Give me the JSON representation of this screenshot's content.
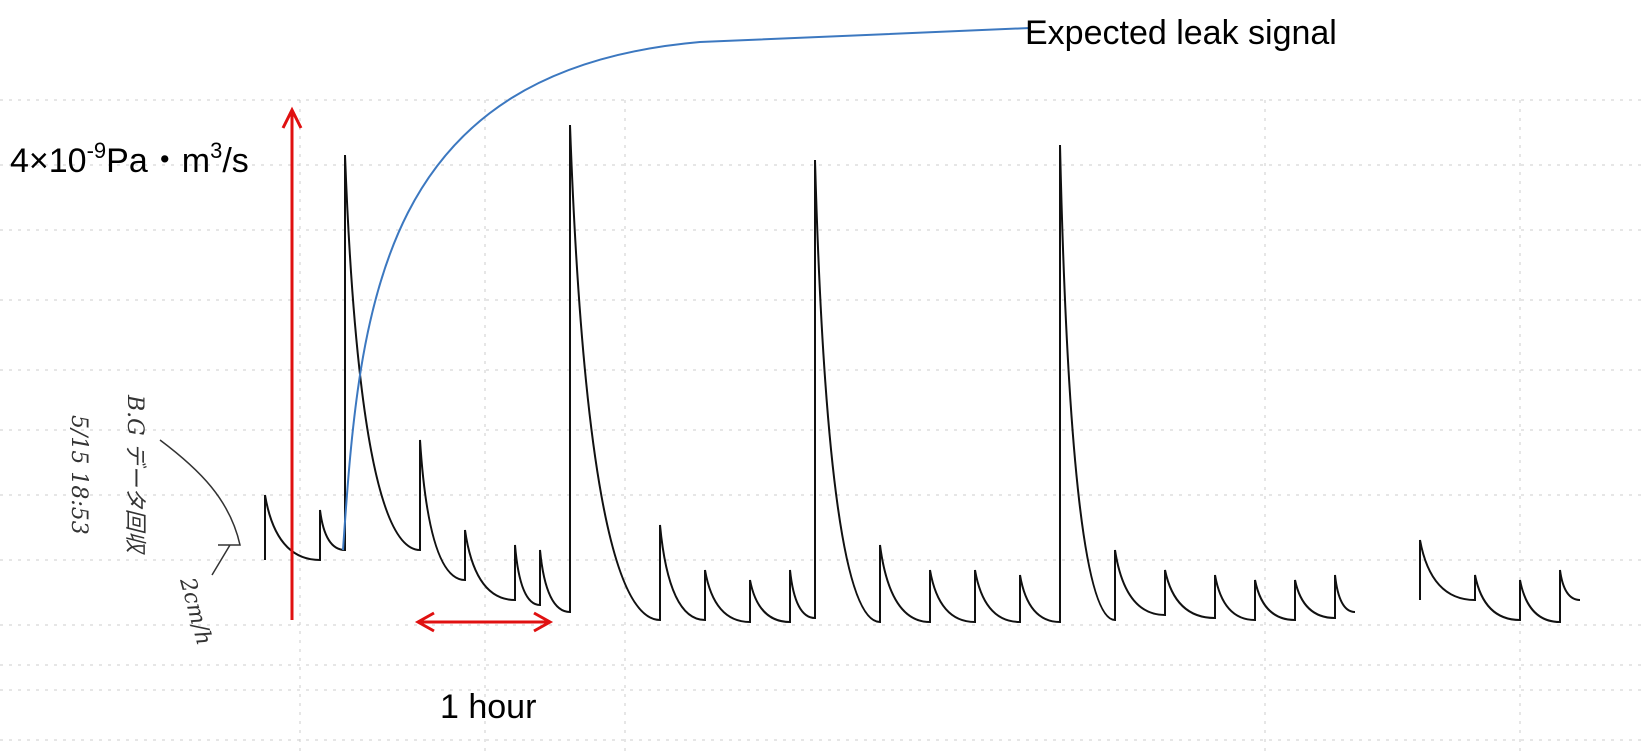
{
  "annotations": {
    "expected": "Expected leak signal",
    "scale": {
      "base": "4×10",
      "exp": "-9",
      "unit": "Pa・m",
      "unit_exp": "3",
      "per": "/s"
    },
    "time": "1 hour"
  },
  "handwriting": {
    "note": "B.G データ回収",
    "date": "5/15 18:53",
    "speed": "2cm/h"
  }
}
